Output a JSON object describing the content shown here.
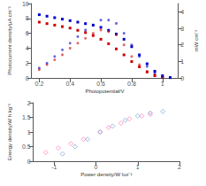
{
  "chart_data": [
    {
      "type": "scatter",
      "xlabel": "Photopotential/V",
      "ylabel": "Photocurrent density/μA cm⁻²",
      "y2label": "mW cm⁻²",
      "xlim": [
        0.15,
        1.1
      ],
      "xticks": [
        0.2,
        0.4,
        0.6,
        0.8,
        1
      ],
      "ylim": [
        0,
        10
      ],
      "yticks": [
        0,
        2,
        4,
        6,
        8,
        10
      ],
      "y2lim": [
        0,
        4.5
      ],
      "y2ticks": [
        0,
        1,
        2,
        3,
        4
      ],
      "grid": false,
      "series": [
        {
          "color": "#cc0000",
          "marker": "square",
          "x": [
            0.2,
            0.25,
            0.3,
            0.35,
            0.4,
            0.45,
            0.5,
            0.55,
            0.6,
            0.65,
            0.7,
            0.75,
            0.8,
            0.85,
            0.9,
            0.95,
            1.0,
            1.05
          ],
          "values": [
            7.5,
            7.3,
            7.1,
            6.9,
            6.7,
            6.4,
            6.1,
            5.7,
            5.2,
            4.6,
            3.9,
            3.1,
            2.2,
            1.5,
            0.8,
            0.3,
            0.1,
            0.05
          ]
        },
        {
          "color": "#0000cc",
          "marker": "square",
          "x": [
            0.2,
            0.25,
            0.3,
            0.35,
            0.4,
            0.45,
            0.5,
            0.55,
            0.6,
            0.65,
            0.7,
            0.75,
            0.8,
            0.85,
            0.9,
            0.95,
            1.0,
            1.05
          ],
          "values": [
            8.5,
            8.3,
            8.1,
            7.9,
            7.7,
            7.5,
            7.3,
            7.1,
            6.8,
            6.4,
            5.9,
            5.2,
            4.2,
            3.1,
            1.9,
            0.9,
            0.3,
            0.05
          ]
        },
        {
          "color": "#cc0000",
          "marker": "circle",
          "axis": "y2",
          "x": [
            0.2,
            0.25,
            0.3,
            0.35,
            0.4,
            0.45,
            0.5,
            0.55,
            0.6,
            0.65,
            0.7,
            0.75,
            0.8,
            0.85,
            0.9,
            0.95,
            1.0
          ],
          "values": [
            0.5,
            0.8,
            1.1,
            1.4,
            1.8,
            2.1,
            2.4,
            2.7,
            2.9,
            2.8,
            2.6,
            2.0,
            1.3,
            0.8,
            0.4,
            0.2,
            0.05
          ]
        },
        {
          "color": "#0000cc",
          "marker": "circle",
          "axis": "y2",
          "x": [
            0.2,
            0.25,
            0.3,
            0.35,
            0.4,
            0.45,
            0.5,
            0.55,
            0.6,
            0.65,
            0.7,
            0.75,
            0.8,
            0.85,
            0.9,
            0.95,
            1.0
          ],
          "values": [
            0.6,
            0.9,
            1.3,
            1.7,
            2.1,
            2.5,
            2.9,
            3.2,
            3.5,
            3.5,
            3.3,
            2.7,
            2.0,
            1.3,
            0.7,
            0.3,
            0.05
          ]
        }
      ]
    },
    {
      "type": "scatter",
      "xlabel": "Power density/W lux⁻¹",
      "ylabel": "Energy density/W h kg⁻¹",
      "xlim": [
        -1.5,
        2.0
      ],
      "xticks": [
        -1,
        0,
        1,
        2
      ],
      "ylim": [
        0,
        2.0
      ],
      "yticks": [
        0,
        0.5,
        1,
        1.5,
        2
      ],
      "grid": false,
      "series": [
        {
          "color": "#ff69b4",
          "marker": "diamond_open",
          "x": [
            -1.2,
            -0.9,
            -0.6,
            -0.3,
            0.1,
            0.3,
            0.6,
            0.8,
            1.1,
            1.3
          ],
          "values": [
            0.3,
            0.45,
            0.6,
            0.75,
            1.0,
            1.15,
            1.3,
            1.45,
            1.55,
            1.6
          ]
        },
        {
          "color": "#6699cc",
          "marker": "diamond_open",
          "x": [
            -0.8,
            -0.5,
            -0.2,
            0.1,
            0.4,
            0.7,
            1.0,
            1.3,
            1.6
          ],
          "values": [
            0.25,
            0.5,
            0.75,
            1.0,
            1.2,
            1.4,
            1.55,
            1.65,
            1.7
          ]
        }
      ]
    }
  ]
}
